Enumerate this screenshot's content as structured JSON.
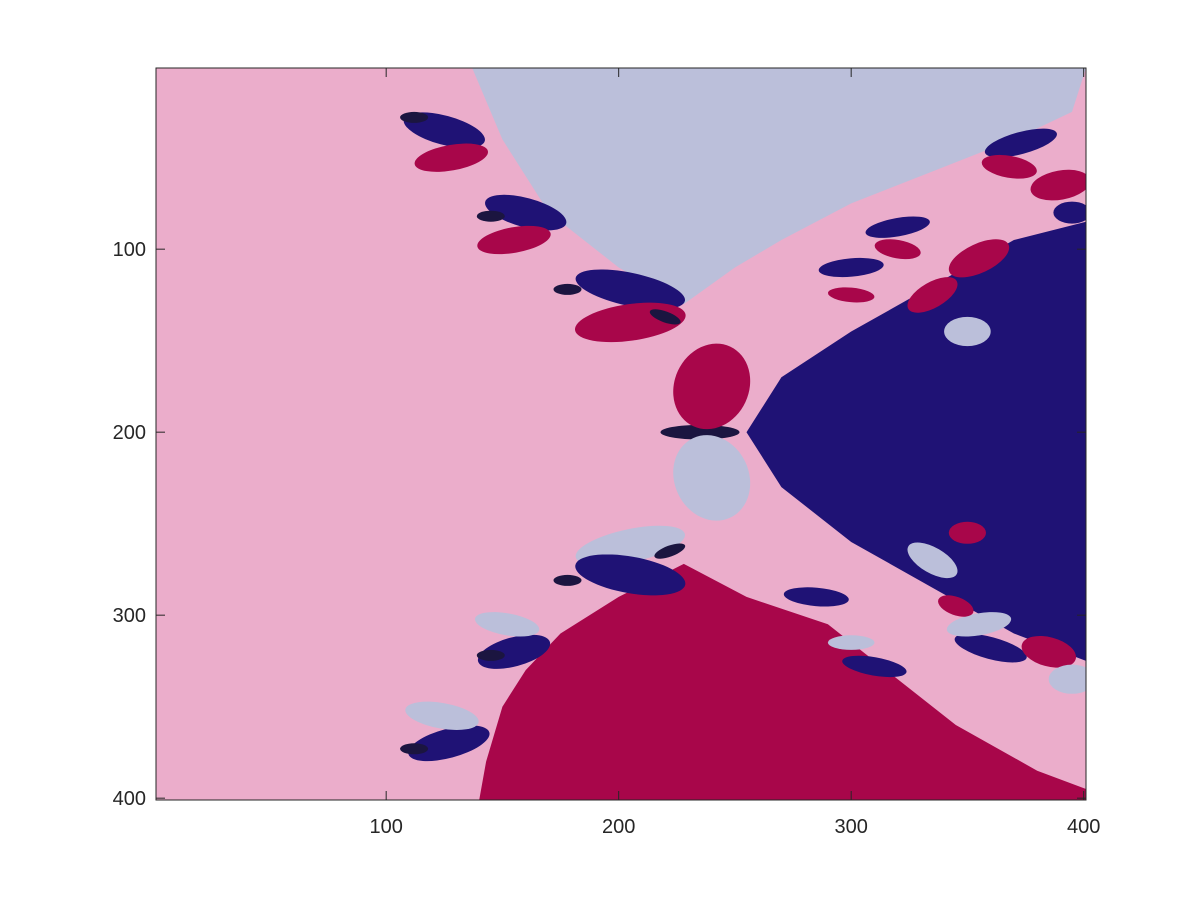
{
  "chart_data": {
    "type": "heatmap",
    "title": "",
    "xlabel": "",
    "ylabel": "",
    "xlim": [
      1,
      401
    ],
    "ylim": [
      1,
      401
    ],
    "y_direction": "reversed",
    "grid": false,
    "legend": "none",
    "x_ticks": [
      100,
      200,
      300,
      400
    ],
    "y_ticks": [
      100,
      200,
      300,
      400
    ],
    "x_tick_labels": [
      "100",
      "200",
      "300",
      "400"
    ],
    "y_tick_labels": [
      "100",
      "200",
      "300",
      "400"
    ],
    "colors": {
      "background": "#ebadcb",
      "basin_top": "#bbbfda",
      "basin_right": "#1f1275",
      "basin_bottom": "#a8064a",
      "lobe_dark": "#1b1540",
      "axes_edge": "#262626"
    },
    "description_values": {
      "central_point": [
        255,
        200
      ],
      "secondary_points": [
        [
          228,
          130
        ],
        [
          228,
          272
        ]
      ]
    }
  }
}
